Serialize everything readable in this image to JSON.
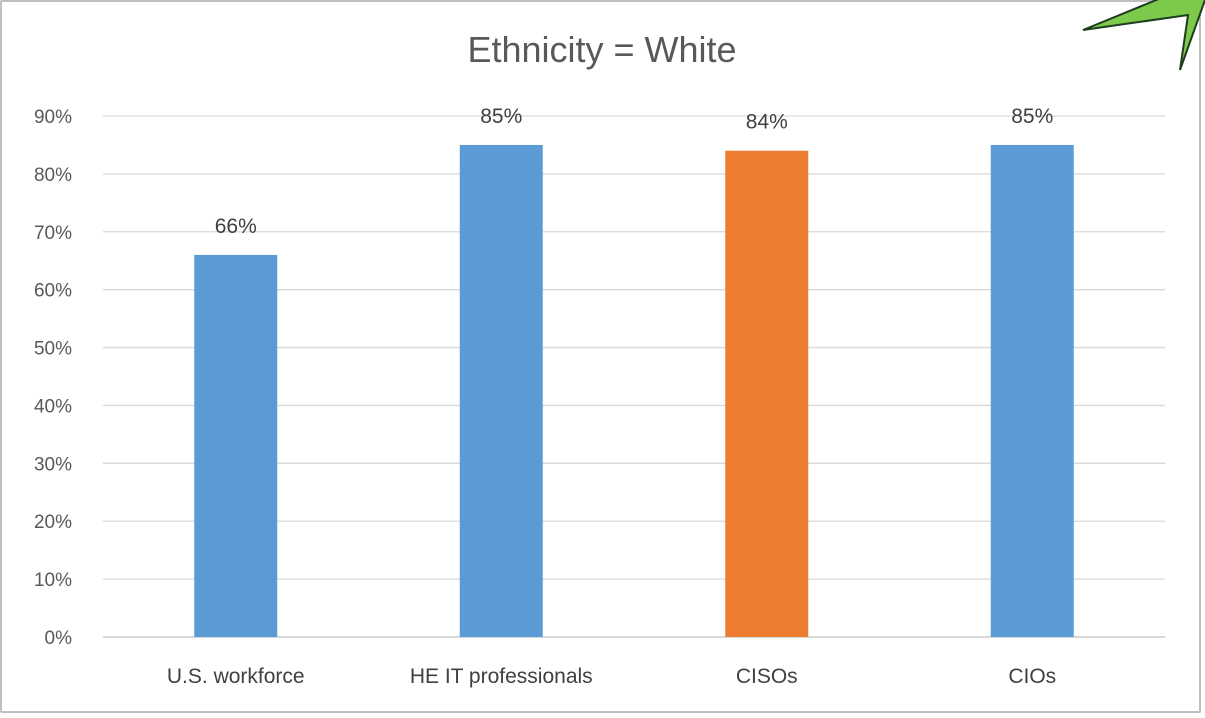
{
  "chart_data": {
    "type": "bar",
    "title": "Ethnicity = White",
    "categories": [
      "U.S. workforce",
      "HE IT professionals",
      "CISOs",
      "CIOs"
    ],
    "values": [
      66,
      85,
      84,
      85
    ],
    "data_labels": [
      "66%",
      "85%",
      "84%",
      "85%"
    ],
    "bar_colors": [
      "#5b9bd5",
      "#5b9bd5",
      "#ed7d31",
      "#5b9bd5"
    ],
    "ylim": [
      0,
      90
    ],
    "yticks": [
      0,
      10,
      20,
      30,
      40,
      50,
      60,
      70,
      80,
      90
    ],
    "ytick_labels": [
      "0%",
      "10%",
      "20%",
      "30%",
      "40%",
      "50%",
      "60%",
      "70%",
      "80%",
      "90%"
    ],
    "grid": true,
    "legend": "none",
    "xlabel": "",
    "ylabel": ""
  },
  "decoration": {
    "arrow_color": "#7cc94b",
    "arrow_stroke": "#1f3d1f"
  }
}
